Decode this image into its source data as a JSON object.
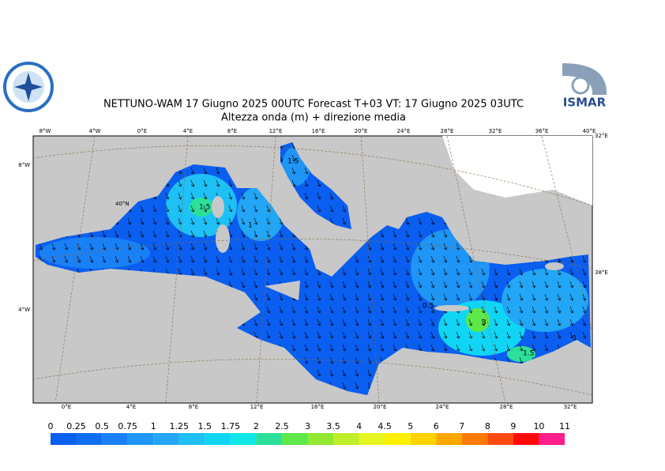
{
  "header": {
    "title": "NETTUNO-WAM  17   Giugno  2025 00UTC Forecast T+03 VT: 17   Giugno  2025 03UTC",
    "subtitle": "Altezza onda (m) + direzione media",
    "logo_text": "ISMAR"
  },
  "map": {
    "top_labels": [
      "8°W",
      "4°W",
      "0°E",
      "4°E",
      "8°E",
      "12°E",
      "16°E",
      "20°E",
      "24°E",
      "28°E",
      "32°E",
      "36°E",
      "40°E"
    ],
    "bottom_labels": [
      "0°E",
      "4°E",
      "8°E",
      "12°E",
      "16°E",
      "20°E",
      "24°E",
      "28°E",
      "32°E"
    ],
    "left_labels": [
      "8°W",
      "4°W"
    ],
    "right_labels": [
      "32°E",
      "38°E"
    ],
    "lat_label": "40°N",
    "contour_labels": [
      "1.5",
      "1",
      "1.5",
      "0.5",
      "3",
      "1.5",
      "1"
    ]
  },
  "colorbar": {
    "labels": [
      "0",
      "0.25",
      "0.5",
      "0.75",
      "1",
      "1.25",
      "1.5",
      "1.75",
      "2",
      "2.5",
      "3",
      "3.5",
      "4",
      "4.5",
      "5",
      "6",
      "7",
      "8",
      "9",
      "10",
      "11"
    ],
    "colors": [
      "#0a5ef0",
      "#0f6ef0",
      "#1a80f5",
      "#1f95f5",
      "#22a6f5",
      "#1ec0f5",
      "#10d5f5",
      "#10e8e8",
      "#2ce09a",
      "#5ee84a",
      "#90e830",
      "#bfee2a",
      "#e6f520",
      "#fff000",
      "#ffd200",
      "#ffa800",
      "#ff7a00",
      "#ff4a10",
      "#ff0a0a",
      "#ff1e8c"
    ]
  }
}
